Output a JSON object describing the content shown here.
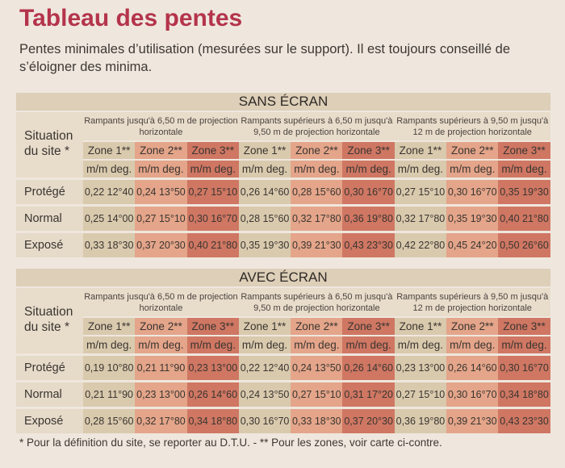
{
  "title": "Tableau des pentes",
  "intro": "Pentes minimales d’utilisation (mesurées sur le support). Il est toujours conseillé de s’éloigner des minima.",
  "situation_label": "Situation du site *",
  "rampants": [
    "Rampants jusqu'à 6,50 m de projection horizontale",
    "Rampants supérieurs à 6,50 m jusqu'à 9,50 m de projection horizontale",
    "Rampants supérieurs à 9,50 m jusqu'à 12 m de projection horizontale"
  ],
  "zones": [
    "Zone 1**",
    "Zone 2**",
    "Zone 3**"
  ],
  "unit": "m/m deg.",
  "tables": [
    {
      "title": "SANS ÉCRAN",
      "rows": [
        {
          "label": "Protégé",
          "cells": [
            "0,22 12°40",
            "0,24 13°50",
            "0,27 15°10",
            "0,26 14°60",
            "0,28 15°60",
            "0,30 16°70",
            "0,27 15°10",
            "0,30 16°70",
            "0,35 19°30"
          ]
        },
        {
          "label": "Normal",
          "cells": [
            "0,25 14°00",
            "0,27 15°10",
            "0,30 16°70",
            "0,28 15°60",
            "0,32 17°80",
            "0,36 19°80",
            "0,32 17°80",
            "0,35 19°30",
            "0,40 21°80"
          ]
        },
        {
          "label": "Exposé",
          "cells": [
            "0,33 18°30",
            "0,37 20°30",
            "0,40 21°80",
            "0,35 19°30",
            "0,39 21°30",
            "0,43 23°30",
            "0,42 22°80",
            "0,45 24°20",
            "0,50 26°60"
          ]
        }
      ]
    },
    {
      "title": "AVEC ÉCRAN",
      "rows": [
        {
          "label": "Protégé",
          "cells": [
            "0,19 10°80",
            "0,21 11°90",
            "0,23 13°00",
            "0,22 12°40",
            "0,24 13°50",
            "0,26 14°60",
            "0,23 13°00",
            "0,26 14°60",
            "0,30 16°70"
          ]
        },
        {
          "label": "Normal",
          "cells": [
            "0,21 11°90",
            "0,23 13°00",
            "0,26 14°60",
            "0,24 13°50",
            "0,27 15°10",
            "0,31 17°20",
            "0,27 15°10",
            "0,30 16°70",
            "0,34 18°80"
          ]
        },
        {
          "label": "Exposé",
          "cells": [
            "0,28 15°60",
            "0,32 17°80",
            "0,34 18°80",
            "0,30 16°70",
            "0,33 18°30",
            "0,37 20°30",
            "0,36 19°80",
            "0,39 21°30",
            "0,43 23°30"
          ]
        }
      ]
    }
  ],
  "footnote": "* Pour la définition du site, se reporter au D.T.U. - ** Pour les zones, voir carte ci-contre."
}
